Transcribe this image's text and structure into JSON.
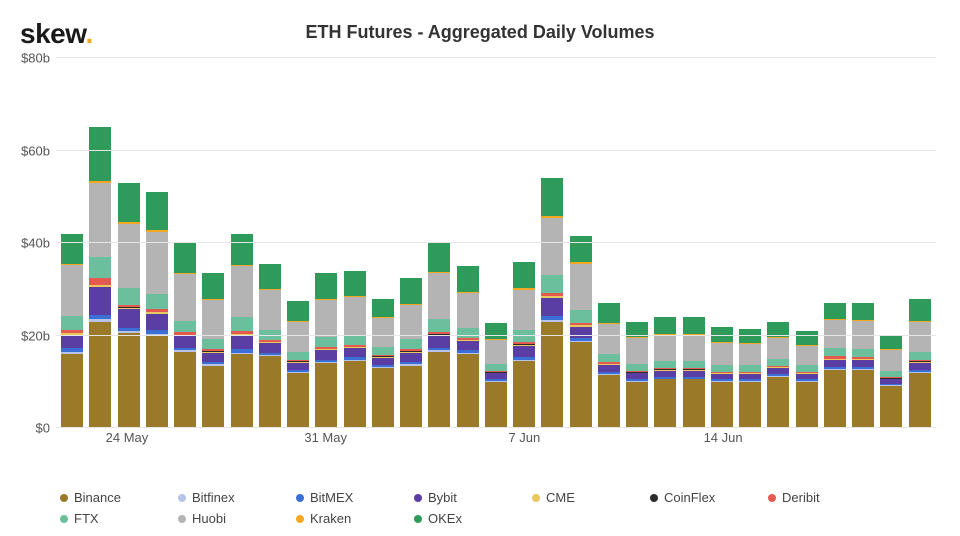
{
  "logo_text": "skew",
  "logo_dot": ".",
  "chart": {
    "title": "ETH Futures - Aggregated Daily Volumes",
    "y_axis": {
      "min": 0,
      "max": 80,
      "tick_step": 20,
      "ticks": [
        {
          "value": 0,
          "label": "$0"
        },
        {
          "value": 20,
          "label": "$20b"
        },
        {
          "value": 40,
          "label": "$40b"
        },
        {
          "value": 60,
          "label": "$60b"
        },
        {
          "value": 80,
          "label": "$80b"
        }
      ]
    },
    "x_axis": {
      "ticks": [
        {
          "index": 2,
          "label": "24 May"
        },
        {
          "index": 9,
          "label": "31 May"
        },
        {
          "index": 16,
          "label": "7 Jun"
        },
        {
          "index": 23,
          "label": "14 Jun"
        }
      ]
    },
    "series": [
      {
        "key": "binance",
        "label": "Binance",
        "color": "#9a7a29"
      },
      {
        "key": "bitfinex",
        "label": "Bitfinex",
        "color": "#b7c3e8"
      },
      {
        "key": "bitmex",
        "label": "BitMEX",
        "color": "#3b6fd6"
      },
      {
        "key": "bybit",
        "label": "Bybit",
        "color": "#5a3ea3"
      },
      {
        "key": "cme",
        "label": "CME",
        "color": "#e8c95e"
      },
      {
        "key": "coinflex",
        "label": "CoinFlex",
        "color": "#2b2b2b"
      },
      {
        "key": "deribit",
        "label": "Deribit",
        "color": "#e55a4e"
      },
      {
        "key": "ftx",
        "label": "FTX",
        "color": "#6bbf9c"
      },
      {
        "key": "huobi",
        "label": "Huobi",
        "color": "#b4b4b4"
      },
      {
        "key": "kraken",
        "label": "Kraken",
        "color": "#f5a623"
      },
      {
        "key": "okex",
        "label": "OKEx",
        "color": "#2f9b5a"
      }
    ],
    "bars": [
      {
        "binance": 16.0,
        "bitfinex": 0.4,
        "bitmex": 0.8,
        "bybit": 3.0,
        "cme": 0.3,
        "coinflex": 0.1,
        "deribit": 0.6,
        "ftx": 3.0,
        "huobi": 11.0,
        "kraken": 0.3,
        "okex": 6.5
      },
      {
        "binance": 23.0,
        "bitfinex": 0.5,
        "bitmex": 1.0,
        "bybit": 6.0,
        "cme": 0.4,
        "coinflex": 0.1,
        "deribit": 1.5,
        "ftx": 4.5,
        "huobi": 16.0,
        "kraken": 0.5,
        "okex": 11.5
      },
      {
        "binance": 20.5,
        "bitfinex": 0.4,
        "bitmex": 0.8,
        "bybit": 4.0,
        "cme": 0.3,
        "coinflex": 0.1,
        "deribit": 0.6,
        "ftx": 3.5,
        "huobi": 14.0,
        "kraken": 0.3,
        "okex": 8.5
      },
      {
        "binance": 20.0,
        "bitfinex": 0.4,
        "bitmex": 0.8,
        "bybit": 3.5,
        "cme": 0.3,
        "coinflex": 0.1,
        "deribit": 0.6,
        "ftx": 3.3,
        "huobi": 13.5,
        "kraken": 0.3,
        "okex": 8.2
      },
      {
        "binance": 16.5,
        "bitfinex": 0.3,
        "bitmex": 0.6,
        "bybit": 2.5,
        "cme": 0.2,
        "coinflex": 0.1,
        "deribit": 0.5,
        "ftx": 2.5,
        "huobi": 10.0,
        "kraken": 0.3,
        "okex": 6.5
      },
      {
        "binance": 13.5,
        "bitfinex": 0.3,
        "bitmex": 0.5,
        "bybit": 2.0,
        "cme": 0.2,
        "coinflex": 0.1,
        "deribit": 0.4,
        "ftx": 2.2,
        "huobi": 8.5,
        "kraken": 0.2,
        "okex": 5.6
      },
      {
        "binance": 16.0,
        "bitfinex": 0.3,
        "bitmex": 0.7,
        "bybit": 3.0,
        "cme": 0.3,
        "coinflex": 0.1,
        "deribit": 0.6,
        "ftx": 3.0,
        "huobi": 11.0,
        "kraken": 0.3,
        "okex": 6.7
      },
      {
        "binance": 15.5,
        "bitfinex": 0.3,
        "bitmex": 0.5,
        "bybit": 2.0,
        "cme": 0.2,
        "coinflex": 0.1,
        "deribit": 0.4,
        "ftx": 2.3,
        "huobi": 8.5,
        "kraken": 0.2,
        "okex": 5.5
      },
      {
        "binance": 12.0,
        "bitfinex": 0.2,
        "bitmex": 0.4,
        "bybit": 1.5,
        "cme": 0.2,
        "coinflex": 0.1,
        "deribit": 0.3,
        "ftx": 1.8,
        "huobi": 6.5,
        "kraken": 0.2,
        "okex": 4.3
      },
      {
        "binance": 14.0,
        "bitfinex": 0.3,
        "bitmex": 0.5,
        "bybit": 2.0,
        "cme": 0.2,
        "coinflex": 0.1,
        "deribit": 0.4,
        "ftx": 2.2,
        "huobi": 8.0,
        "kraken": 0.2,
        "okex": 5.6
      },
      {
        "binance": 14.5,
        "bitfinex": 0.3,
        "bitmex": 0.5,
        "bybit": 2.0,
        "cme": 0.2,
        "coinflex": 0.1,
        "deribit": 0.4,
        "ftx": 2.2,
        "huobi": 8.2,
        "kraken": 0.2,
        "okex": 5.4
      },
      {
        "binance": 13.0,
        "bitfinex": 0.2,
        "bitmex": 0.4,
        "bybit": 1.6,
        "cme": 0.2,
        "coinflex": 0.1,
        "deribit": 0.3,
        "ftx": 1.8,
        "huobi": 6.2,
        "kraken": 0.2,
        "okex": 4.0
      },
      {
        "binance": 13.5,
        "bitfinex": 0.3,
        "bitmex": 0.5,
        "bybit": 2.0,
        "cme": 0.2,
        "coinflex": 0.1,
        "deribit": 0.4,
        "ftx": 2.2,
        "huobi": 7.5,
        "kraken": 0.2,
        "okex": 5.6
      },
      {
        "binance": 16.5,
        "bitfinex": 0.3,
        "bitmex": 0.6,
        "bybit": 2.5,
        "cme": 0.3,
        "coinflex": 0.1,
        "deribit": 0.5,
        "ftx": 2.7,
        "huobi": 10.0,
        "kraken": 0.3,
        "okex": 6.2
      },
      {
        "binance": 16.0,
        "bitfinex": 0.3,
        "bitmex": 0.5,
        "bybit": 2.0,
        "cme": 0.2,
        "coinflex": 0.1,
        "deribit": 0.4,
        "ftx": 2.2,
        "huobi": 7.5,
        "kraken": 0.2,
        "okex": 5.6
      },
      {
        "binance": 10.0,
        "bitfinex": 0.2,
        "bitmex": 0.4,
        "bybit": 1.2,
        "cme": 0.2,
        "coinflex": 0.1,
        "deribit": 0.3,
        "ftx": 1.5,
        "huobi": 5.2,
        "kraken": 0.2,
        "okex": 3.5
      },
      {
        "binance": 14.5,
        "bitfinex": 0.3,
        "bitmex": 0.6,
        "bybit": 2.3,
        "cme": 0.3,
        "coinflex": 0.1,
        "deribit": 0.5,
        "ftx": 2.5,
        "huobi": 8.8,
        "kraken": 0.3,
        "okex": 5.8
      },
      {
        "binance": 23.0,
        "bitfinex": 0.4,
        "bitmex": 0.8,
        "bybit": 4.0,
        "cme": 0.3,
        "coinflex": 0.1,
        "deribit": 0.7,
        "ftx": 3.7,
        "huobi": 12.5,
        "kraken": 0.3,
        "okex": 8.2
      },
      {
        "binance": 18.5,
        "bitfinex": 0.3,
        "bitmex": 0.6,
        "bybit": 2.5,
        "cme": 0.3,
        "coinflex": 0.1,
        "deribit": 0.5,
        "ftx": 2.7,
        "huobi": 10.0,
        "kraken": 0.3,
        "okex": 5.7
      },
      {
        "binance": 11.5,
        "bitfinex": 0.2,
        "bitmex": 0.4,
        "bybit": 1.5,
        "cme": 0.2,
        "coinflex": 0.1,
        "deribit": 0.3,
        "ftx": 1.8,
        "huobi": 6.5,
        "kraken": 0.2,
        "okex": 4.3
      },
      {
        "binance": 10.0,
        "bitfinex": 0.2,
        "bitmex": 0.4,
        "bybit": 1.2,
        "cme": 0.2,
        "coinflex": 0.1,
        "deribit": 0.3,
        "ftx": 1.5,
        "huobi": 5.5,
        "kraken": 0.2,
        "okex": 3.4
      },
      {
        "binance": 10.5,
        "bitfinex": 0.2,
        "bitmex": 0.4,
        "bybit": 1.3,
        "cme": 0.2,
        "coinflex": 0.1,
        "deribit": 0.3,
        "ftx": 1.6,
        "huobi": 5.5,
        "kraken": 0.2,
        "okex": 3.7
      },
      {
        "binance": 10.5,
        "bitfinex": 0.2,
        "bitmex": 0.4,
        "bybit": 1.3,
        "cme": 0.2,
        "coinflex": 0.1,
        "deribit": 0.3,
        "ftx": 1.6,
        "huobi": 5.5,
        "kraken": 0.2,
        "okex": 3.7
      },
      {
        "binance": 10.0,
        "bitfinex": 0.2,
        "bitmex": 0.3,
        "bybit": 1.1,
        "cme": 0.2,
        "coinflex": 0.1,
        "deribit": 0.3,
        "ftx": 1.4,
        "huobi": 4.8,
        "kraken": 0.2,
        "okex": 3.2
      },
      {
        "binance": 10.0,
        "bitfinex": 0.2,
        "bitmex": 0.3,
        "bybit": 1.1,
        "cme": 0.2,
        "coinflex": 0.1,
        "deribit": 0.3,
        "ftx": 1.4,
        "huobi": 4.5,
        "kraken": 0.2,
        "okex": 3.2
      },
      {
        "binance": 11.0,
        "bitfinex": 0.2,
        "bitmex": 0.4,
        "bybit": 1.3,
        "cme": 0.2,
        "coinflex": 0.1,
        "deribit": 0.3,
        "ftx": 1.5,
        "huobi": 4.5,
        "kraken": 0.2,
        "okex": 3.3
      },
      {
        "binance": 10.0,
        "bitfinex": 0.2,
        "bitmex": 0.3,
        "bybit": 1.1,
        "cme": 0.2,
        "coinflex": 0.1,
        "deribit": 0.3,
        "ftx": 1.4,
        "huobi": 4.2,
        "kraken": 0.2,
        "okex": 3.0
      },
      {
        "binance": 12.5,
        "bitfinex": 0.2,
        "bitmex": 0.4,
        "bybit": 1.6,
        "cme": 0.2,
        "coinflex": 0.1,
        "deribit": 0.5,
        "ftx": 1.8,
        "huobi": 6.0,
        "kraken": 0.2,
        "okex": 3.5
      },
      {
        "binance": 12.5,
        "bitfinex": 0.2,
        "bitmex": 0.4,
        "bybit": 1.6,
        "cme": 0.2,
        "coinflex": 0.1,
        "deribit": 0.3,
        "ftx": 1.8,
        "huobi": 6.0,
        "kraken": 0.2,
        "okex": 3.7
      },
      {
        "binance": 9.0,
        "bitfinex": 0.2,
        "bitmex": 0.3,
        "bybit": 1.0,
        "cme": 0.2,
        "coinflex": 0.1,
        "deribit": 0.3,
        "ftx": 1.3,
        "huobi": 4.5,
        "kraken": 0.2,
        "okex": 2.9
      },
      {
        "binance": 12.0,
        "bitfinex": 0.2,
        "bitmex": 0.4,
        "bybit": 1.5,
        "cme": 0.2,
        "coinflex": 0.1,
        "deribit": 0.3,
        "ftx": 1.8,
        "huobi": 6.5,
        "kraken": 0.2,
        "okex": 4.8
      }
    ]
  }
}
